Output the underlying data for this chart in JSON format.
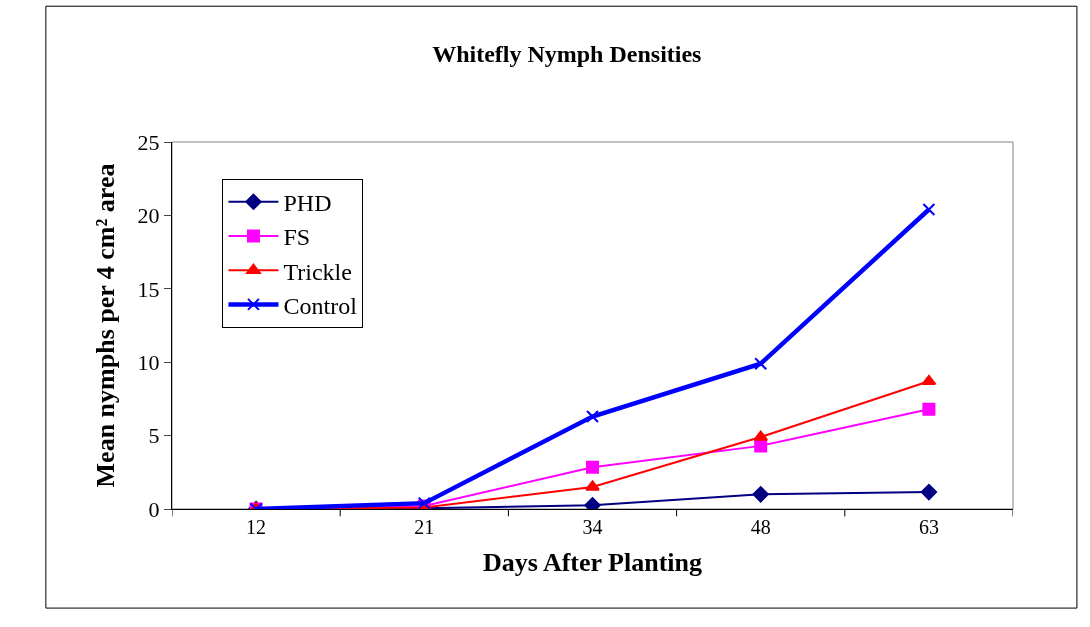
{
  "chart_data": {
    "type": "line",
    "title": "Whitefly Nymph Densities",
    "xlabel": "Days After Planting",
    "ylabel": "Mean nymphs per 4 cm² area",
    "categories": [
      "12",
      "21",
      "34",
      "48",
      "63"
    ],
    "series": [
      {
        "name": "PHD",
        "color": "#000080",
        "marker": "diamond",
        "values": [
          0,
          0.05,
          0.25,
          1.0,
          1.15
        ]
      },
      {
        "name": "FS",
        "color": "#ff00ff",
        "marker": "square",
        "values": [
          0,
          0.2,
          2.85,
          4.3,
          6.8
        ]
      },
      {
        "name": "Trickle",
        "color": "#ff0000",
        "marker": "triangle",
        "values": [
          0,
          0.1,
          1.5,
          4.9,
          8.7
        ]
      },
      {
        "name": "Control",
        "color": "#0000ff",
        "marker": "cross",
        "values": [
          0,
          0.4,
          6.3,
          9.9,
          20.4
        ]
      }
    ],
    "ylim": [
      0,
      25
    ],
    "yticks": [
      0,
      5,
      10,
      15,
      20,
      25
    ],
    "grid": false,
    "legend": "top left"
  }
}
